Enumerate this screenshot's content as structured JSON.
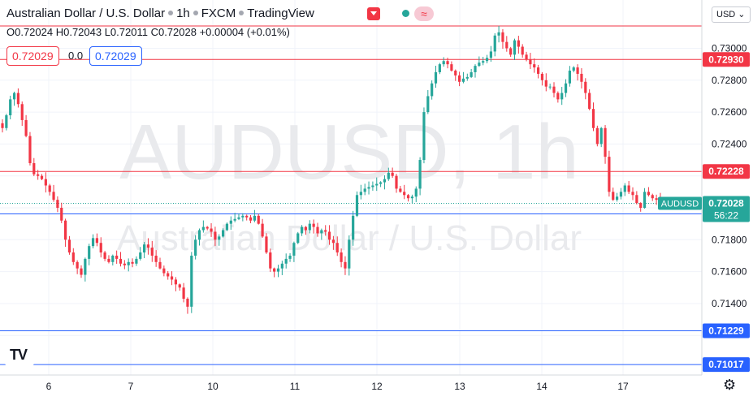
{
  "header": {
    "symbol_title": "Australian Dollar / U.S. Dollar",
    "interval": "1h",
    "exchange": "FXCM",
    "source": "TradingView",
    "ohlc": "O0.72024 H0.72043 L0.72011 C0.72028 +0.00004 (+0.01%)"
  },
  "quote": {
    "bid": "0.72029",
    "spread": "0.0",
    "ask": "0.72029"
  },
  "currency_button": "USD",
  "watermark": {
    "ticker": "AUDUSD, 1h",
    "name": "Australian Dollar / U.S. Dollar"
  },
  "colors": {
    "up": "#26a69a",
    "down": "#f23645",
    "support": "#2962ff",
    "resistance": "#f23645",
    "current": "#26a69a"
  },
  "chart_data": {
    "type": "candlestick",
    "symbol": "AUDUSD",
    "x_ticks": [
      "6",
      "7",
      "10",
      "11",
      "12",
      "13",
      "14",
      "17"
    ],
    "y_ticks": [
      "0.73000",
      "0.72800",
      "0.72600",
      "0.72400",
      "0.72000",
      "0.71800",
      "0.71600",
      "0.71400"
    ],
    "ylim": [
      0.70975,
      0.732
    ],
    "current_price": {
      "label": "AUDUSD",
      "value": "0.72028",
      "countdown": "56:22"
    },
    "horizontal_lines": [
      {
        "price": 0.7293,
        "label": "0.72930",
        "kind": "resistance"
      },
      {
        "price": 0.72228,
        "label": "0.72228",
        "kind": "resistance"
      },
      {
        "price": 0.7314,
        "label": "",
        "kind": "resistance"
      },
      {
        "price": 0.71962,
        "label": "0.71962",
        "kind": "support"
      },
      {
        "price": 0.71229,
        "label": "0.71229",
        "kind": "support"
      },
      {
        "price": 0.71017,
        "label": "0.71017",
        "kind": "support"
      }
    ],
    "close_path": [
      0.725,
      0.7258,
      0.7268,
      0.7272,
      0.7265,
      0.7255,
      0.7245,
      0.7228,
      0.7221,
      0.722,
      0.7218,
      0.7214,
      0.721,
      0.7205,
      0.72,
      0.7192,
      0.718,
      0.7172,
      0.7166,
      0.7162,
      0.7158,
      0.7168,
      0.7176,
      0.7181,
      0.7178,
      0.7172,
      0.7168,
      0.7166,
      0.717,
      0.7168,
      0.7165,
      0.7164,
      0.7166,
      0.7165,
      0.7168,
      0.7172,
      0.7177,
      0.7175,
      0.717,
      0.7166,
      0.7162,
      0.7159,
      0.7157,
      0.7155,
      0.7152,
      0.715,
      0.7143,
      0.7138,
      0.717,
      0.718,
      0.7186,
      0.7188,
      0.7187,
      0.7185,
      0.718,
      0.7182,
      0.7186,
      0.719,
      0.7192,
      0.7193,
      0.7194,
      0.7195,
      0.7194,
      0.7192,
      0.7195,
      0.719,
      0.7182,
      0.7172,
      0.7162,
      0.716,
      0.7162,
      0.7165,
      0.7168,
      0.717,
      0.7178,
      0.7184,
      0.7188,
      0.7186,
      0.719,
      0.7188,
      0.7184,
      0.7186,
      0.7185,
      0.718,
      0.7178,
      0.7172,
      0.7166,
      0.7162,
      0.718,
      0.7195,
      0.7208,
      0.721,
      0.7212,
      0.7213,
      0.7214,
      0.7215,
      0.7216,
      0.7218,
      0.7222,
      0.722,
      0.7212,
      0.721,
      0.7208,
      0.7206,
      0.7207,
      0.7212,
      0.723,
      0.726,
      0.727,
      0.7278,
      0.7285,
      0.729,
      0.7292,
      0.729,
      0.7286,
      0.7283,
      0.7279,
      0.7281,
      0.7282,
      0.7285,
      0.7289,
      0.7291,
      0.7292,
      0.7294,
      0.7298,
      0.7308,
      0.731,
      0.7304,
      0.73,
      0.7296,
      0.7305,
      0.7301,
      0.7296,
      0.7293,
      0.729,
      0.7288,
      0.7284,
      0.728,
      0.7276,
      0.7276,
      0.7272,
      0.7268,
      0.7272,
      0.7278,
      0.7286,
      0.7288,
      0.7284,
      0.7279,
      0.7272,
      0.7262,
      0.725,
      0.724,
      0.725,
      0.7232,
      0.721,
      0.7205,
      0.7207,
      0.721,
      0.7214,
      0.721,
      0.7208,
      0.7203,
      0.72,
      0.721,
      0.7208,
      0.7206,
      0.7205,
      0.7204,
      0.72028
    ]
  }
}
